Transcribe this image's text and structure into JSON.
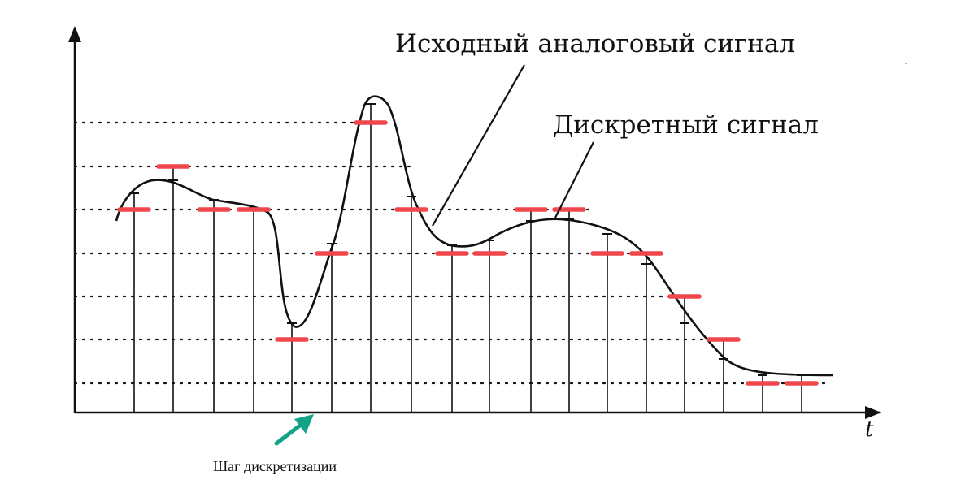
{
  "labels": {
    "analog_signal": "Исходный аналоговый сигнал",
    "discrete_signal": "Дискретный сигнал",
    "time_axis": "t",
    "sampling_step": "Шаг дискретизации"
  },
  "colors": {
    "curve": "#111111",
    "quantized_marks": "#f0474c",
    "step_arrow": "#13a388",
    "grid": "#111111"
  },
  "samples": {
    "count": 18,
    "quantization_levels": 7
  }
}
